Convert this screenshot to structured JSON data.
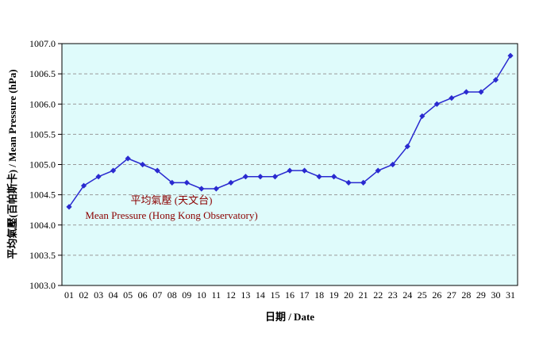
{
  "chart_data": {
    "type": "line",
    "title": "",
    "xlabel": "日期 / Date",
    "ylabel": "平均氣壓(百帕斯卡) / Mean Pressure (hPa)",
    "ylim": [
      1003.0,
      1007.0
    ],
    "ytick_step": 0.5,
    "grid": "horizontal-dashed",
    "legend_position": "inside-plot-left",
    "annotation": {
      "zh": "平均氣壓 (天文台)",
      "en": "Mean Pressure (Hong Kong Observatory)"
    },
    "x": [
      "01",
      "02",
      "03",
      "04",
      "05",
      "06",
      "07",
      "08",
      "09",
      "10",
      "11",
      "12",
      "13",
      "14",
      "15",
      "16",
      "17",
      "18",
      "19",
      "20",
      "21",
      "22",
      "23",
      "24",
      "25",
      "26",
      "27",
      "28",
      "29",
      "30",
      "31"
    ],
    "series": [
      {
        "name": "Mean Pressure (Hong Kong Observatory)",
        "values": [
          1004.3,
          1004.65,
          1004.8,
          1004.9,
          1005.1,
          1005.0,
          1004.9,
          1004.7,
          1004.7,
          1004.6,
          1004.6,
          1004.7,
          1004.8,
          1004.8,
          1004.8,
          1004.9,
          1004.9,
          1004.8,
          1004.8,
          1004.7,
          1004.7,
          1004.9,
          1005.0,
          1005.3,
          1005.8,
          1006.0,
          1006.1,
          1006.2,
          1006.2,
          1006.4,
          1006.8
        ]
      }
    ],
    "colors": {
      "line": "#2a2ad0",
      "marker": "#2a2ad0",
      "annotation": "#8b0000",
      "plot_bg": "#dffbfb",
      "page_bg": "#ffffff"
    }
  }
}
